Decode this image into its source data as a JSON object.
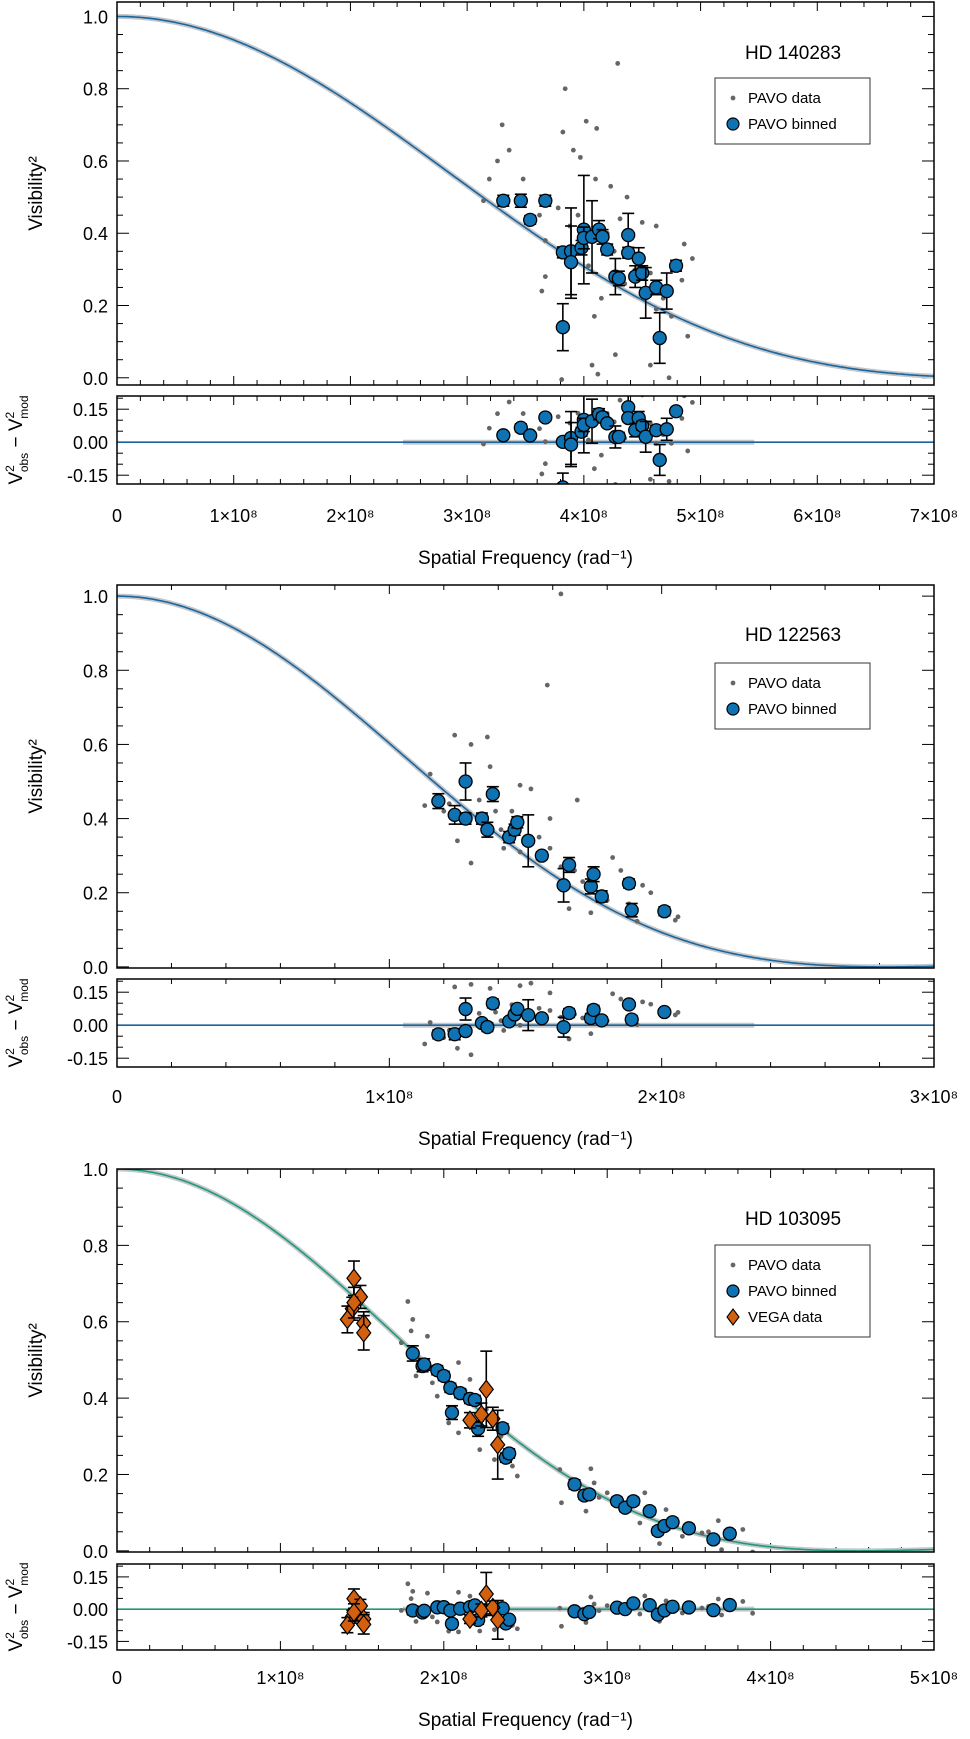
{
  "chart_data": [
    {
      "type": "scatter",
      "title": "HD 140283",
      "xlabel": "Spatial Frequency (rad⁻¹)",
      "ylabel": "Visibility²",
      "resid_ylabel": [
        "V",
        "2",
        "obs",
        " − V",
        "2",
        "mod"
      ],
      "xlim": [
        0,
        700000000.0
      ],
      "xticks": [
        0,
        100000000.0,
        200000000.0,
        300000000.0,
        400000000.0,
        500000000.0,
        600000000.0,
        700000000.0
      ],
      "xtick_labels": [
        "0",
        "1×10⁸",
        "2×10⁸",
        "3×10⁸",
        "4×10⁸",
        "5×10⁸",
        "6×10⁸",
        "7×10⁸"
      ],
      "ylim": [
        -0.02,
        1.04
      ],
      "yticks": [
        0,
        0.2,
        0.4,
        0.6,
        0.8,
        1.0
      ],
      "ytick_labels": [
        "0.0",
        "0.2",
        "0.4",
        "0.6",
        "0.8",
        "1.0"
      ],
      "resid_ylim": [
        -0.19,
        0.21
      ],
      "resid_yticks": [
        -0.15,
        0,
        0.15
      ],
      "resid_ytick_labels": [
        "-0.15",
        "0.00",
        "0.15"
      ],
      "model": {
        "type": "limb-darkened disk",
        "theta_mas": 0.358,
        "u": 0.6,
        "color": "#1b659d"
      },
      "legend": {
        "placement": "top-right",
        "items": [
          "PAVO data",
          "PAVO binned"
        ]
      },
      "pavo_data": [
        [
          429000000.0,
          0.87
        ],
        [
          384000000.0,
          0.8
        ],
        [
          402000000.0,
          0.71
        ],
        [
          411000000.0,
          0.69
        ],
        [
          330000000.0,
          0.7
        ],
        [
          382000000.0,
          0.68
        ],
        [
          391000000.0,
          0.63
        ],
        [
          397000000.0,
          0.61
        ],
        [
          336000000.0,
          0.63
        ],
        [
          326000000.0,
          0.6
        ],
        [
          314000000.0,
          0.49
        ],
        [
          319000000.0,
          0.55
        ],
        [
          348000000.0,
          0.55
        ],
        [
          410000000.0,
          0.55
        ],
        [
          423000000.0,
          0.53
        ],
        [
          437000000.0,
          0.5
        ],
        [
          450000000.0,
          0.43
        ],
        [
          462000000.0,
          0.42
        ],
        [
          486000000.0,
          0.37
        ],
        [
          493000000.0,
          0.33
        ],
        [
          367000000.0,
          0.28
        ],
        [
          364000000.0,
          0.24
        ],
        [
          409000000.0,
          0.17
        ],
        [
          427000000.0,
          0.064
        ],
        [
          407000000.0,
          0.035
        ],
        [
          381000000.0,
          -0.005
        ],
        [
          412000000.0,
          0.01
        ],
        [
          473000000.0,
          0.0
        ],
        [
          489000000.0,
          0.115
        ],
        [
          457000000.0,
          0.035
        ],
        [
          362000000.0,
          0.45
        ],
        [
          378000000.0,
          0.47
        ],
        [
          431000000.0,
          0.44
        ],
        [
          441000000.0,
          0.35
        ],
        [
          484000000.0,
          0.27
        ],
        [
          462000000.0,
          0.19
        ],
        [
          475000000.0,
          0.17
        ],
        [
          367000000.0,
          0.38
        ],
        [
          404000000.0,
          0.31
        ],
        [
          426000000.0,
          0.35
        ],
        [
          457000000.0,
          0.29
        ],
        [
          415000000.0,
          0.22
        ],
        [
          395000000.0,
          0.45
        ],
        [
          420000000.0,
          0.4
        ],
        [
          445000000.0,
          0.3
        ],
        [
          388000000.0,
          0.42
        ],
        [
          435000000.0,
          0.26
        ],
        [
          468000000.0,
          0.22
        ]
      ],
      "pavo_binned": [
        [
          331000000.0,
          0.49,
          0.015
        ],
        [
          346000000.0,
          0.49,
          0.018
        ],
        [
          367000000.0,
          0.49,
          0.015
        ],
        [
          354000000.0,
          0.437,
          0.012
        ],
        [
          382000000.0,
          0.347,
          0.015
        ],
        [
          389000000.0,
          0.35,
          0.12
        ],
        [
          389000000.0,
          0.32,
          0.1
        ],
        [
          398000000.0,
          0.36,
          0.02
        ],
        [
          400000000.0,
          0.41,
          0.15
        ],
        [
          400000000.0,
          0.387,
          0.03
        ],
        [
          407000000.0,
          0.39,
          0.1
        ],
        [
          413000000.0,
          0.41,
          0.025
        ],
        [
          416000000.0,
          0.39,
          0.02
        ],
        [
          420000000.0,
          0.355,
          0.015
        ],
        [
          427000000.0,
          0.28,
          0.05
        ],
        [
          430000000.0,
          0.275,
          0.02
        ],
        [
          438000000.0,
          0.395,
          0.06
        ],
        [
          438000000.0,
          0.346,
          0.015
        ],
        [
          447000000.0,
          0.33,
          0.03
        ],
        [
          444000000.0,
          0.28,
          0.03
        ],
        [
          450000000.0,
          0.29,
          0.02
        ],
        [
          453000000.0,
          0.235,
          0.07
        ],
        [
          462000000.0,
          0.25,
          0.02
        ],
        [
          471000000.0,
          0.24,
          0.05
        ],
        [
          479000000.0,
          0.31,
          0.015
        ],
        [
          382000000.0,
          0.14,
          0.065
        ],
        [
          465000000.0,
          0.11,
          0.07
        ]
      ]
    },
    {
      "type": "scatter",
      "title": "HD 122563",
      "xlabel": "Spatial Frequency (rad⁻¹)",
      "ylabel": "Visibility²",
      "resid_ylabel": [
        "V",
        "2",
        "obs",
        " − V",
        "2",
        "mod"
      ],
      "xlim": [
        0,
        300000000.0
      ],
      "xticks": [
        0,
        100000000.0,
        200000000.0,
        300000000.0
      ],
      "xtick_labels": [
        "0",
        "1×10⁸",
        "2×10⁸",
        "3×10⁸"
      ],
      "ylim": [
        -0.003,
        1.03
      ],
      "yticks": [
        0,
        0.2,
        0.4,
        0.6,
        0.8,
        1.0
      ],
      "ytick_labels": [
        "0.0",
        "0.2",
        "0.4",
        "0.6",
        "0.8",
        "1.0"
      ],
      "resid_ylim": [
        -0.19,
        0.21
      ],
      "resid_yticks": [
        -0.15,
        0,
        0.15
      ],
      "resid_ytick_labels": [
        "-0.15",
        "0.00",
        "0.15"
      ],
      "model": {
        "type": "limb-darkened disk",
        "theta_mas": 0.965,
        "u": 0.6,
        "color": "#1b659d"
      },
      "legend": {
        "placement": "top-right",
        "items": [
          "PAVO data",
          "PAVO binned"
        ]
      },
      "pavo_data": [
        [
          163000000.0,
          1.006
        ],
        [
          158000000.0,
          0.76
        ],
        [
          124000000.0,
          0.625
        ],
        [
          136000000.0,
          0.62
        ],
        [
          130000000.0,
          0.6
        ],
        [
          137000000.0,
          0.54
        ],
        [
          148000000.0,
          0.49
        ],
        [
          152000000.0,
          0.48
        ],
        [
          169000000.0,
          0.45
        ],
        [
          115000000.0,
          0.52
        ],
        [
          113000000.0,
          0.435
        ],
        [
          122000000.0,
          0.44
        ],
        [
          125000000.0,
          0.34
        ],
        [
          130000000.0,
          0.28
        ],
        [
          159000000.0,
          0.4
        ],
        [
          142000000.0,
          0.32
        ],
        [
          148000000.0,
          0.31
        ],
        [
          159000000.0,
          0.32
        ],
        [
          166000000.0,
          0.157
        ],
        [
          174000000.0,
          0.146
        ],
        [
          182000000.0,
          0.295
        ],
        [
          185000000.0,
          0.26
        ],
        [
          193000000.0,
          0.22
        ],
        [
          196000000.0,
          0.2
        ],
        [
          205000000.0,
          0.126
        ],
        [
          206000000.0,
          0.135
        ],
        [
          191000000.0,
          0.123
        ],
        [
          139000000.0,
          0.42
        ],
        [
          145000000.0,
          0.42
        ],
        [
          155000000.0,
          0.35
        ],
        [
          163000000.0,
          0.27
        ],
        [
          168000000.0,
          0.26
        ],
        [
          180000000.0,
          0.18
        ],
        [
          133000000.0,
          0.45
        ],
        [
          120000000.0,
          0.42
        ],
        [
          127000000.0,
          0.39
        ],
        [
          141000000.0,
          0.37
        ],
        [
          171000000.0,
          0.23
        ],
        [
          188000000.0,
          0.17
        ],
        [
          202000000.0,
          0.16
        ]
      ],
      "pavo_binned": [
        [
          118000000.0,
          0.447,
          0.02
        ],
        [
          124000000.0,
          0.41,
          0.025
        ],
        [
          128000000.0,
          0.5,
          0.05
        ],
        [
          128000000.0,
          0.4,
          0.015
        ],
        [
          134000000.0,
          0.4,
          0.015
        ],
        [
          136000000.0,
          0.37,
          0.02
        ],
        [
          138000000.0,
          0.466,
          0.02
        ],
        [
          144000000.0,
          0.35,
          0.015
        ],
        [
          146000000.0,
          0.37,
          0.015
        ],
        [
          147000000.0,
          0.39,
          0.015
        ],
        [
          151000000.0,
          0.34,
          0.07
        ],
        [
          156000000.0,
          0.3,
          0.01
        ],
        [
          164000000.0,
          0.22,
          0.045
        ],
        [
          166000000.0,
          0.275,
          0.02
        ],
        [
          174000000.0,
          0.217,
          0.02
        ],
        [
          175000000.0,
          0.25,
          0.02
        ],
        [
          178000000.0,
          0.19,
          0.015
        ],
        [
          188000000.0,
          0.225,
          0.012
        ],
        [
          189000000.0,
          0.153,
          0.018
        ],
        [
          201000000.0,
          0.15,
          0.012
        ]
      ]
    },
    {
      "type": "scatter",
      "title": "HD 103095",
      "xlabel": "Spatial Frequency (rad⁻¹)",
      "ylabel": "Visibility²",
      "resid_ylabel": [
        "V",
        "2",
        "obs",
        " − V",
        "2",
        "mod"
      ],
      "xlim": [
        0,
        500000000.0
      ],
      "xticks": [
        0,
        100000000.0,
        200000000.0,
        300000000.0,
        400000000.0,
        500000000.0
      ],
      "xtick_labels": [
        "0",
        "1×10⁸",
        "2×10⁸",
        "3×10⁸",
        "4×10⁸",
        "5×10⁸"
      ],
      "ylim": [
        -0.003,
        1.0
      ],
      "yticks": [
        0,
        0.2,
        0.4,
        0.6,
        0.8,
        1.0
      ],
      "ytick_labels": [
        "0.0",
        "0.2",
        "0.4",
        "0.6",
        "0.8",
        "1.0"
      ],
      "resid_ylim": [
        -0.19,
        0.21
      ],
      "resid_yticks": [
        -0.15,
        0,
        0.15
      ],
      "resid_ytick_labels": [
        "-0.15",
        "0.00",
        "0.15"
      ],
      "model": {
        "type": "limb-darkened disk",
        "theta_mas": 0.6,
        "u": 0.6,
        "color": "#1f9a78"
      },
      "legend": {
        "placement": "top-right",
        "items": [
          "PAVO data",
          "PAVO binned",
          "VEGA data"
        ]
      },
      "pavo_data": [
        [
          178000000.0,
          0.653
        ],
        [
          181000000.0,
          0.606
        ],
        [
          180000000.0,
          0.576
        ],
        [
          174000000.0,
          0.545
        ],
        [
          190000000.0,
          0.562
        ],
        [
          209000000.0,
          0.493
        ],
        [
          196000000.0,
          0.405
        ],
        [
          216000000.0,
          0.449
        ],
        [
          222000000.0,
          0.265
        ],
        [
          231000000.0,
          0.239
        ],
        [
          245000000.0,
          0.196
        ],
        [
          242000000.0,
          0.222
        ],
        [
          271000000.0,
          0.213
        ],
        [
          278000000.0,
          0.187
        ],
        [
          290000000.0,
          0.215
        ],
        [
          272000000.0,
          0.126
        ],
        [
          292000000.0,
          0.178
        ],
        [
          300000000.0,
          0.152
        ],
        [
          323000000.0,
          0.152
        ],
        [
          336000000.0,
          0.108
        ],
        [
          332000000.0,
          0.019
        ],
        [
          368000000.0,
          0.079
        ],
        [
          383000000.0,
          0.056
        ],
        [
          389000000.0,
          -0.003
        ],
        [
          370000000.0,
          0.003
        ],
        [
          320000000.0,
          0.073
        ],
        [
          287000000.0,
          0.104
        ],
        [
          183000000.0,
          0.458
        ],
        [
          193000000.0,
          0.44
        ],
        [
          203000000.0,
          0.335
        ],
        [
          209000000.0,
          0.309
        ],
        [
          346000000.0,
          0.038
        ],
        [
          358000000.0,
          0.047
        ],
        [
          186000000.0,
          0.5
        ],
        [
          200000000.0,
          0.47
        ],
        [
          213000000.0,
          0.42
        ],
        [
          226000000.0,
          0.37
        ],
        [
          235000000.0,
          0.3
        ],
        [
          295000000.0,
          0.14
        ],
        [
          310000000.0,
          0.12
        ],
        [
          340000000.0,
          0.08
        ],
        [
          362000000.0,
          0.05
        ]
      ],
      "pavo_binned": [
        [
          181000000.0,
          0.517,
          0.02
        ],
        [
          187000000.0,
          0.484,
          0.015
        ],
        [
          188000000.0,
          0.488,
          0.015
        ],
        [
          196000000.0,
          0.473,
          0.012
        ],
        [
          200000000.0,
          0.458,
          0.012
        ],
        [
          204000000.0,
          0.427,
          0.012
        ],
        [
          210000000.0,
          0.413,
          0.012
        ],
        [
          216000000.0,
          0.398,
          0.012
        ],
        [
          219000000.0,
          0.395,
          0.012
        ],
        [
          205000000.0,
          0.362,
          0.018
        ],
        [
          221000000.0,
          0.32,
          0.02
        ],
        [
          236000000.0,
          0.321,
          0.012
        ],
        [
          238000000.0,
          0.244,
          0.012
        ],
        [
          240000000.0,
          0.255,
          0.012
        ],
        [
          280000000.0,
          0.174,
          0.012
        ],
        [
          286000000.0,
          0.145,
          0.01
        ],
        [
          289000000.0,
          0.148,
          0.01
        ],
        [
          306000000.0,
          0.13,
          0.01
        ],
        [
          311000000.0,
          0.113,
          0.01
        ],
        [
          316000000.0,
          0.13,
          0.01
        ],
        [
          326000000.0,
          0.104,
          0.01
        ],
        [
          331000000.0,
          0.052,
          0.01
        ],
        [
          335000000.0,
          0.065,
          0.01
        ],
        [
          340000000.0,
          0.075,
          0.01
        ],
        [
          350000000.0,
          0.059,
          0.01
        ],
        [
          365000000.0,
          0.03,
          0.01
        ],
        [
          375000000.0,
          0.045,
          0.01
        ]
      ],
      "vega_data": [
        [
          145000000.0,
          0.714,
          0.045
        ],
        [
          149000000.0,
          0.665,
          0.03
        ],
        [
          144000000.0,
          0.634,
          0.03
        ],
        [
          141000000.0,
          0.606,
          0.035
        ],
        [
          151000000.0,
          0.596,
          0.03
        ],
        [
          151000000.0,
          0.571,
          0.045
        ],
        [
          145000000.0,
          0.65,
          0.04
        ],
        [
          226000000.0,
          0.423,
          0.1
        ],
        [
          223000000.0,
          0.357,
          0.03
        ],
        [
          216000000.0,
          0.342,
          0.02
        ],
        [
          230000000.0,
          0.346,
          0.03
        ],
        [
          233000000.0,
          0.278,
          0.09
        ]
      ]
    }
  ],
  "colors": {
    "pavo_data": "#666666",
    "pavo_binned": "#0f72b2",
    "vega_data": "#d3600f",
    "model_band": "#c4c8cc"
  }
}
